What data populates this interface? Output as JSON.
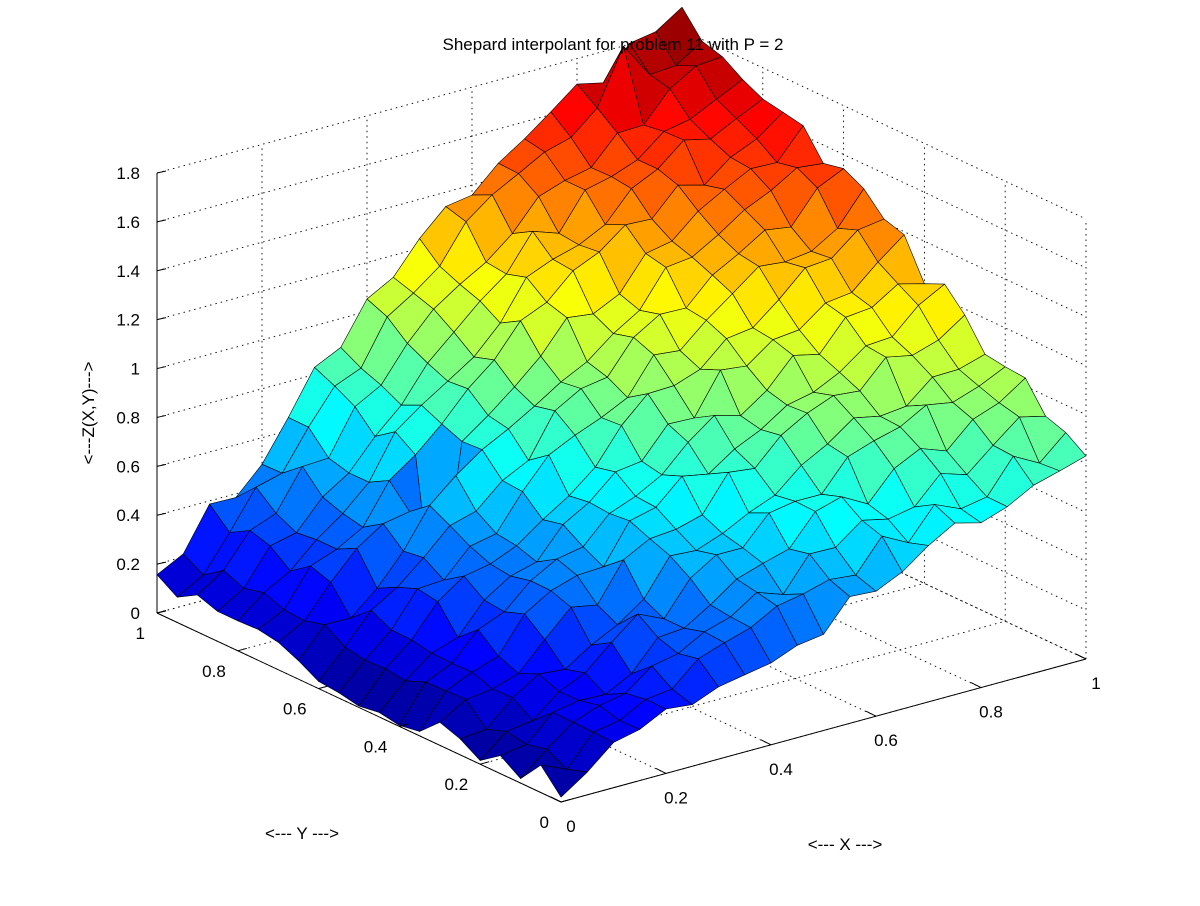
{
  "chart_data": {
    "type": "surface",
    "title": "Shepard interpolant for problem 11 with P = 2",
    "xlabel": "<--- X --->",
    "ylabel": "<--- Y --->",
    "zlabel": "<---Z(X,Y)--->",
    "xlim": [
      0,
      1
    ],
    "ylim": [
      0,
      1
    ],
    "zlim": [
      0,
      1.8
    ],
    "x_ticks": [
      "0",
      "0.2",
      "0.4",
      "0.6",
      "0.8",
      "1"
    ],
    "y_ticks": [
      "0",
      "0.2",
      "0.4",
      "0.6",
      "0.8",
      "1"
    ],
    "z_ticks": [
      "0",
      "0.2",
      "0.4",
      "0.6",
      "0.8",
      "1",
      "1.2",
      "1.4",
      "1.6",
      "1.8"
    ],
    "grid": true,
    "colormap": "jet",
    "colormap_colors": [
      "#00008F",
      "#0000FF",
      "#0080FF",
      "#00FFFF",
      "#80FF80",
      "#FFFF00",
      "#FF8000",
      "#FF0000",
      "#800000"
    ],
    "grid_resolution": 21,
    "surface_samples": {
      "x": [
        0,
        0.25,
        0.5,
        0.75,
        1
      ],
      "y": [
        0,
        0.25,
        0.5,
        0.75,
        1
      ],
      "z": [
        [
          0.08,
          0.05,
          0.05,
          0.1,
          0.12
        ],
        [
          0.25,
          0.35,
          0.45,
          0.55,
          0.65
        ],
        [
          0.45,
          0.65,
          0.85,
          1.05,
          1.25
        ],
        [
          0.65,
          0.9,
          1.15,
          1.4,
          1.6
        ],
        [
          0.8,
          1.1,
          1.4,
          1.65,
          1.85
        ]
      ],
      "z_layout_note": "rows indexed by x, columns by y"
    }
  }
}
